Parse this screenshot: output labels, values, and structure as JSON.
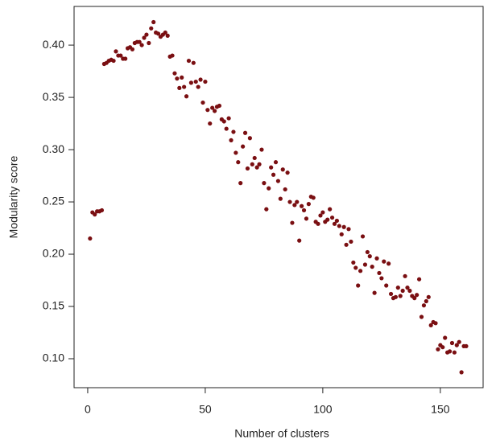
{
  "chart_data": {
    "type": "scatter",
    "xlabel": "Number of clusters",
    "ylabel": "Modularity score",
    "color": "#7a0f12",
    "xlim": [
      -5.8,
      168.2
    ],
    "ylim": [
      0.0723,
      0.437
    ],
    "xticks": [
      0,
      50,
      100,
      150
    ],
    "yticks": [
      {
        "value": 0.1,
        "label": "0.10"
      },
      0.15,
      {
        "value": 0.2,
        "label": "0.20"
      },
      0.25,
      {
        "value": 0.3,
        "label": "0.30"
      },
      0.35,
      {
        "value": 0.4,
        "label": "0.40"
      }
    ],
    "x": [
      1,
      2,
      3,
      4,
      5,
      6,
      7,
      8,
      9,
      10,
      11,
      12,
      13,
      14,
      15,
      16,
      17,
      18,
      19,
      20,
      21,
      22,
      23,
      24,
      25,
      26,
      27,
      28,
      29,
      30,
      31,
      32,
      33,
      34,
      35,
      36,
      37,
      38,
      39,
      40,
      41,
      42,
      43,
      44,
      45,
      46,
      47,
      48,
      49,
      50,
      51,
      52,
      53,
      54,
      55,
      56,
      57,
      58,
      59,
      60,
      61,
      62,
      63,
      64,
      65,
      66,
      67,
      68,
      69,
      70,
      71,
      72,
      73,
      74,
      75,
      76,
      77,
      78,
      79,
      80,
      81,
      82,
      83,
      84,
      85,
      86,
      87,
      88,
      89,
      90,
      91,
      92,
      93,
      94,
      95,
      96,
      97,
      98,
      99,
      100,
      101,
      102,
      103,
      104,
      105,
      106,
      107,
      108,
      109,
      110,
      111,
      112,
      113,
      114,
      115,
      116,
      117,
      118,
      119,
      120,
      121,
      122,
      123,
      124,
      125,
      126,
      127,
      128,
      129,
      130,
      131,
      132,
      133,
      134,
      135,
      136,
      137,
      138,
      139,
      140,
      141,
      142,
      143,
      144,
      145,
      146,
      147,
      148,
      149,
      150,
      151,
      152,
      153,
      154,
      155,
      156,
      157,
      158,
      159,
      160,
      161
    ],
    "values": [
      0.215,
      0.24,
      0.238,
      0.241,
      0.241,
      0.242,
      0.382,
      0.383,
      0.385,
      0.386,
      0.385,
      0.394,
      0.39,
      0.39,
      0.387,
      0.387,
      0.397,
      0.398,
      0.396,
      0.402,
      0.403,
      0.403,
      0.4,
      0.407,
      0.41,
      0.402,
      0.416,
      0.422,
      0.412,
      0.411,
      0.408,
      0.41,
      0.412,
      0.409,
      0.389,
      0.39,
      0.373,
      0.368,
      0.359,
      0.369,
      0.36,
      0.351,
      0.385,
      0.364,
      0.383,
      0.365,
      0.36,
      0.367,
      0.345,
      0.365,
      0.338,
      0.325,
      0.34,
      0.337,
      0.341,
      0.342,
      0.329,
      0.327,
      0.32,
      0.33,
      0.309,
      0.317,
      0.297,
      0.288,
      0.268,
      0.303,
      0.316,
      0.282,
      0.311,
      0.286,
      0.292,
      0.283,
      0.286,
      0.3,
      0.268,
      0.243,
      0.263,
      0.283,
      0.276,
      0.288,
      0.27,
      0.253,
      0.281,
      0.262,
      0.278,
      0.25,
      0.23,
      0.247,
      0.25,
      0.213,
      0.246,
      0.242,
      0.234,
      0.248,
      0.255,
      0.254,
      0.231,
      0.229,
      0.237,
      0.24,
      0.231,
      0.233,
      0.243,
      0.235,
      0.229,
      0.232,
      0.227,
      0.219,
      0.226,
      0.209,
      0.224,
      0.212,
      0.192,
      0.187,
      0.17,
      0.184,
      0.217,
      0.19,
      0.202,
      0.198,
      0.188,
      0.163,
      0.196,
      0.182,
      0.177,
      0.193,
      0.17,
      0.191,
      0.162,
      0.158,
      0.159,
      0.168,
      0.16,
      0.165,
      0.179,
      0.168,
      0.165,
      0.16,
      0.158,
      0.161,
      0.176,
      0.14,
      0.151,
      0.155,
      0.159,
      0.132,
      0.135,
      0.134,
      0.109,
      0.113,
      0.111,
      0.12,
      0.106,
      0.107,
      0.115,
      0.106,
      0.113,
      0.116,
      0.087,
      0.112,
      0.112
    ]
  }
}
